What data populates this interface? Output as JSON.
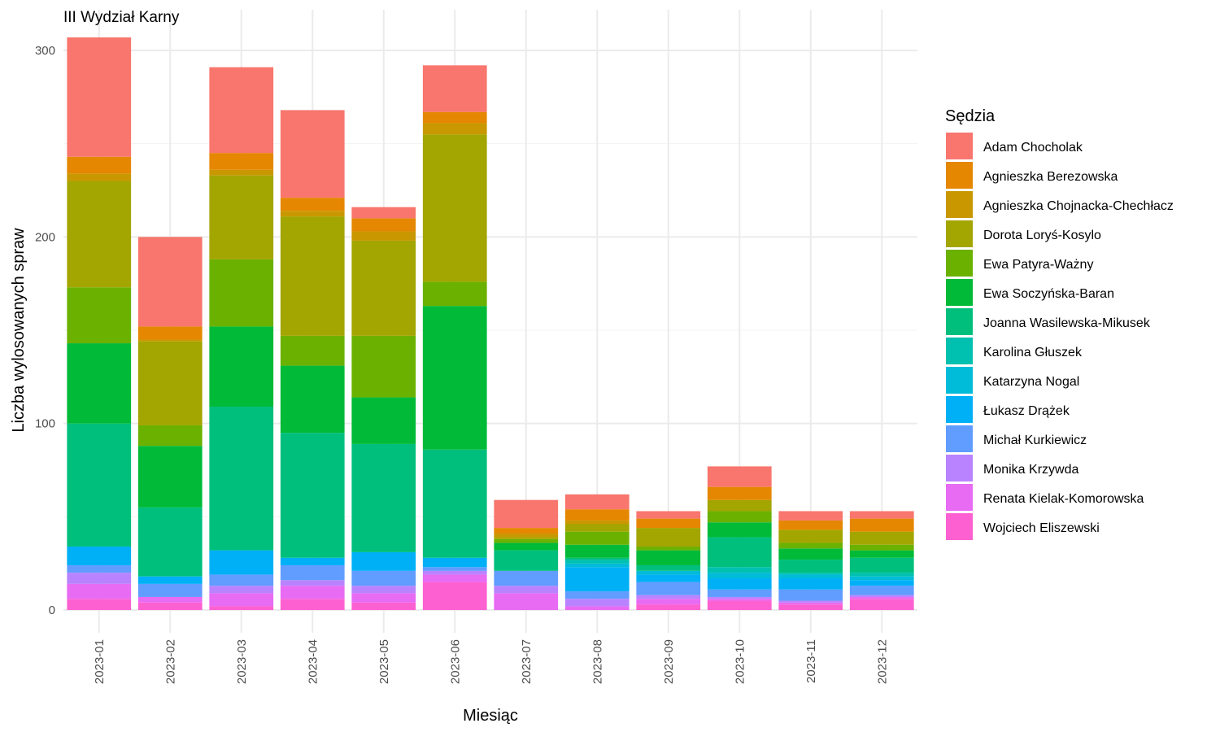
{
  "chart_data": {
    "type": "bar",
    "stacked": true,
    "title": "III Wydział Karny",
    "xlabel": "Miesiąc",
    "ylabel": "Liczba wylosowanych spraw",
    "ylim": [
      0,
      315
    ],
    "yticks": [
      "0",
      "100",
      "200",
      "300"
    ],
    "grid": true,
    "legend_title": "Sędzia",
    "legend_position": "right",
    "categories": [
      "2023-01",
      "2023-02",
      "2023-03",
      "2023-04",
      "2023-05",
      "2023-06",
      "2023-07",
      "2023-08",
      "2023-09",
      "2023-10",
      "2023-11",
      "2023-12"
    ],
    "series": [
      {
        "name": "Adam Chocholak",
        "color": "#F8766D",
        "values": [
          64,
          48,
          46,
          47,
          6,
          25,
          15,
          8,
          4,
          11,
          5,
          4
        ]
      },
      {
        "name": "Agnieszka Berezowska",
        "color": "#E58700",
        "values": [
          9,
          7,
          9,
          7,
          7,
          6,
          3,
          6,
          5,
          7,
          5,
          7
        ]
      },
      {
        "name": "Agnieszka Chojnacka-Chechłacz",
        "color": "#C99800",
        "values": [
          4,
          1,
          3,
          3,
          5,
          6,
          2,
          2,
          0,
          0,
          0,
          0
        ]
      },
      {
        "name": "Dorota Loryś-Kosylo",
        "color": "#A3A500",
        "values": [
          57,
          45,
          45,
          64,
          51,
          79,
          1,
          4,
          10,
          6,
          7,
          7
        ]
      },
      {
        "name": "Ewa Patyra-Ważny",
        "color": "#6BB100",
        "values": [
          30,
          11,
          36,
          16,
          33,
          13,
          2,
          7,
          2,
          6,
          3,
          3
        ]
      },
      {
        "name": "Ewa Soczyńska-Baran",
        "color": "#00BA38",
        "values": [
          43,
          33,
          43,
          36,
          25,
          77,
          4,
          7,
          8,
          8,
          6,
          4
        ]
      },
      {
        "name": "Joanna Wasilewska-Mikusek",
        "color": "#00BF7D",
        "values": [
          66,
          37,
          77,
          67,
          58,
          58,
          11,
          1,
          3,
          16,
          7,
          8
        ]
      },
      {
        "name": "Karolina Głuszek",
        "color": "#00C0AF",
        "values": [
          0,
          0,
          0,
          0,
          0,
          0,
          0,
          2,
          0,
          3,
          1,
          2
        ]
      },
      {
        "name": "Katarzyna Nogal",
        "color": "#00BCD8",
        "values": [
          0,
          0,
          0,
          0,
          0,
          0,
          0,
          2,
          2,
          3,
          2,
          2
        ]
      },
      {
        "name": "Łukasz Drążek",
        "color": "#00B0F6",
        "values": [
          10,
          4,
          13,
          4,
          10,
          5,
          0,
          13,
          4,
          6,
          6,
          3
        ]
      },
      {
        "name": "Michał Kurkiewicz",
        "color": "#619CFF",
        "values": [
          4,
          7,
          6,
          8,
          8,
          2,
          8,
          4,
          7,
          4,
          6,
          5
        ]
      },
      {
        "name": "Monika Krzywda",
        "color": "#B983FF",
        "values": [
          6,
          0,
          4,
          3,
          4,
          2,
          4,
          4,
          2,
          1,
          1,
          1
        ]
      },
      {
        "name": "Renata Kielak-Komorowska",
        "color": "#E76BF3",
        "values": [
          8,
          3,
          7,
          7,
          5,
          4,
          9,
          2,
          3,
          1,
          1,
          1
        ]
      },
      {
        "name": "Wojciech Eliszewski",
        "color": "#FD61D1",
        "values": [
          6,
          4,
          2,
          6,
          4,
          15,
          0,
          0,
          3,
          5,
          3,
          6
        ]
      }
    ]
  }
}
